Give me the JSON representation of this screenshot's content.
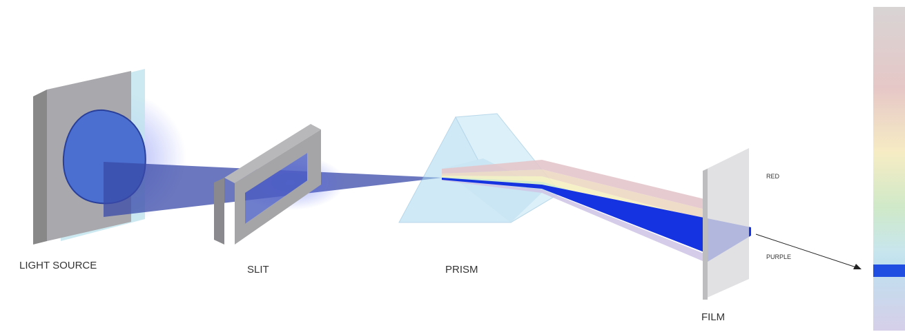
{
  "labels": {
    "light_source": "LIGHT SOURCE",
    "slit": "SLIT",
    "prism": "PRISM",
    "film": "FILM",
    "red": "RED",
    "purple": "PURPLE"
  }
}
